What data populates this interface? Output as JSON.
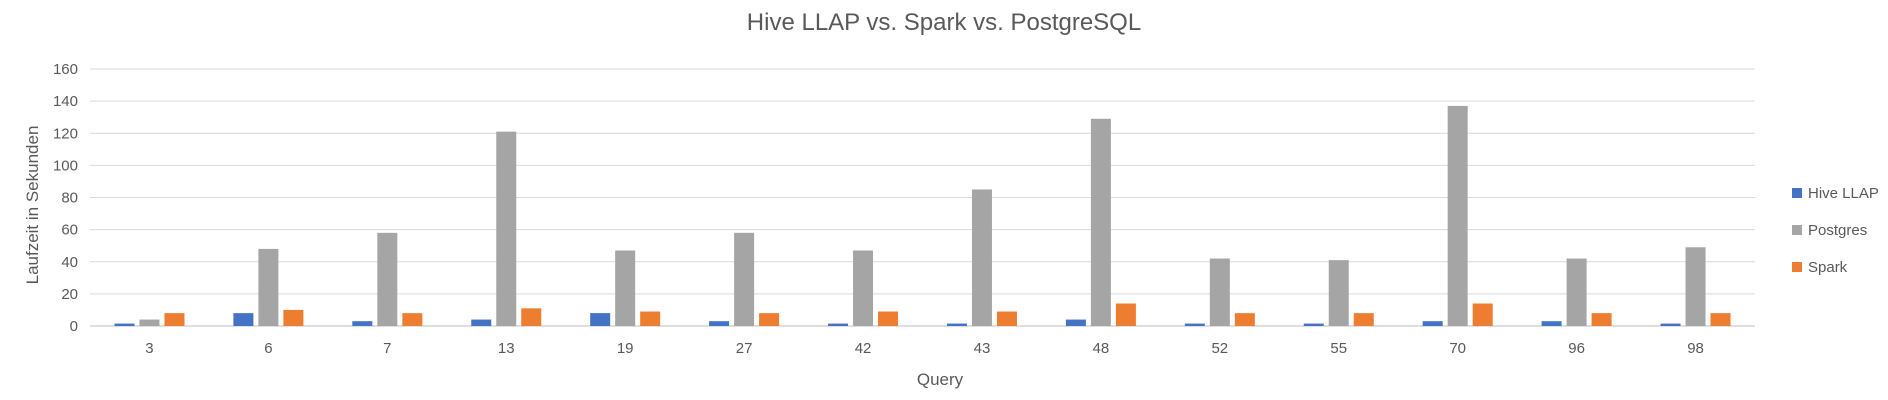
{
  "chart_data": {
    "type": "bar",
    "title": "Hive LLAP vs. Spark vs. PostgreSQL",
    "xlabel": "Query",
    "ylabel": "Laufzeit in Sekunden",
    "ylim": [
      0,
      160
    ],
    "yticks": [
      0,
      20,
      40,
      60,
      80,
      100,
      120,
      140,
      160
    ],
    "grid": true,
    "legend_position": "right",
    "categories": [
      "3",
      "6",
      "7",
      "13",
      "19",
      "27",
      "42",
      "43",
      "48",
      "52",
      "55",
      "70",
      "96",
      "98"
    ],
    "series": [
      {
        "name": "Hive LLAP",
        "color": "#4472c4",
        "values": [
          1.5,
          8,
          3,
          4,
          8,
          3,
          1.5,
          1.5,
          4,
          1.5,
          1.5,
          3,
          3,
          1.5
        ]
      },
      {
        "name": "Postgres",
        "color": "#a5a5a5",
        "values": [
          4,
          48,
          58,
          121,
          47,
          58,
          47,
          85,
          129,
          42,
          41,
          137,
          42,
          49
        ]
      },
      {
        "name": "Spark",
        "color": "#ed7d31",
        "values": [
          8,
          10,
          8,
          11,
          9,
          8,
          9,
          9,
          14,
          8,
          8,
          14,
          8,
          8
        ]
      }
    ]
  }
}
